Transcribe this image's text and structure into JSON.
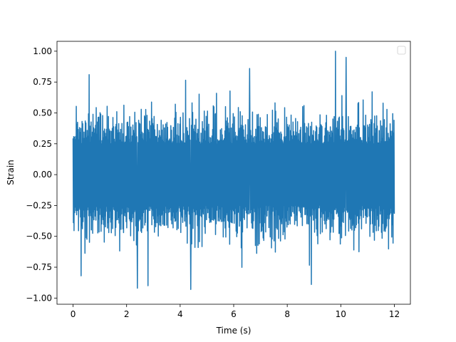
{
  "chart_data": {
    "type": "line",
    "title": "",
    "xlabel": "Time (s)",
    "ylabel": "Strain",
    "xlim": [
      -0.6,
      12.6
    ],
    "ylim": [
      -1.05,
      1.08
    ],
    "xticks": [
      0,
      2,
      4,
      6,
      8,
      10,
      12
    ],
    "xtick_labels": [
      "0",
      "2",
      "4",
      "6",
      "8",
      "10",
      "12"
    ],
    "yticks": [
      -1.0,
      -0.75,
      -0.5,
      -0.25,
      0.0,
      0.25,
      0.5,
      0.75,
      1.0
    ],
    "ytick_labels": [
      "−1.00",
      "−0.75",
      "−0.50",
      "−0.25",
      "0.00",
      "0.25",
      "0.50",
      "0.75",
      "1.00"
    ],
    "legend": {
      "position": "top-right",
      "entries": []
    },
    "grid": false,
    "series": [
      {
        "color": "#1f77b4",
        "x_range": [
          0,
          12
        ],
        "sample_count": 1000,
        "typical_range": [
          -0.45,
          0.45
        ],
        "max": 1.0,
        "min": -0.93,
        "peaks": [
          {
            "x": 0.3,
            "y": -0.82
          },
          {
            "x": 0.6,
            "y": 0.81
          },
          {
            "x": 2.4,
            "y": -0.92
          },
          {
            "x": 2.8,
            "y": -0.9
          },
          {
            "x": 4.4,
            "y": -0.93
          },
          {
            "x": 6.6,
            "y": 0.86
          },
          {
            "x": 9.8,
            "y": 1.0
          },
          {
            "x": 10.2,
            "y": 0.95
          },
          {
            "x": 8.9,
            "y": -0.89
          }
        ]
      }
    ]
  }
}
